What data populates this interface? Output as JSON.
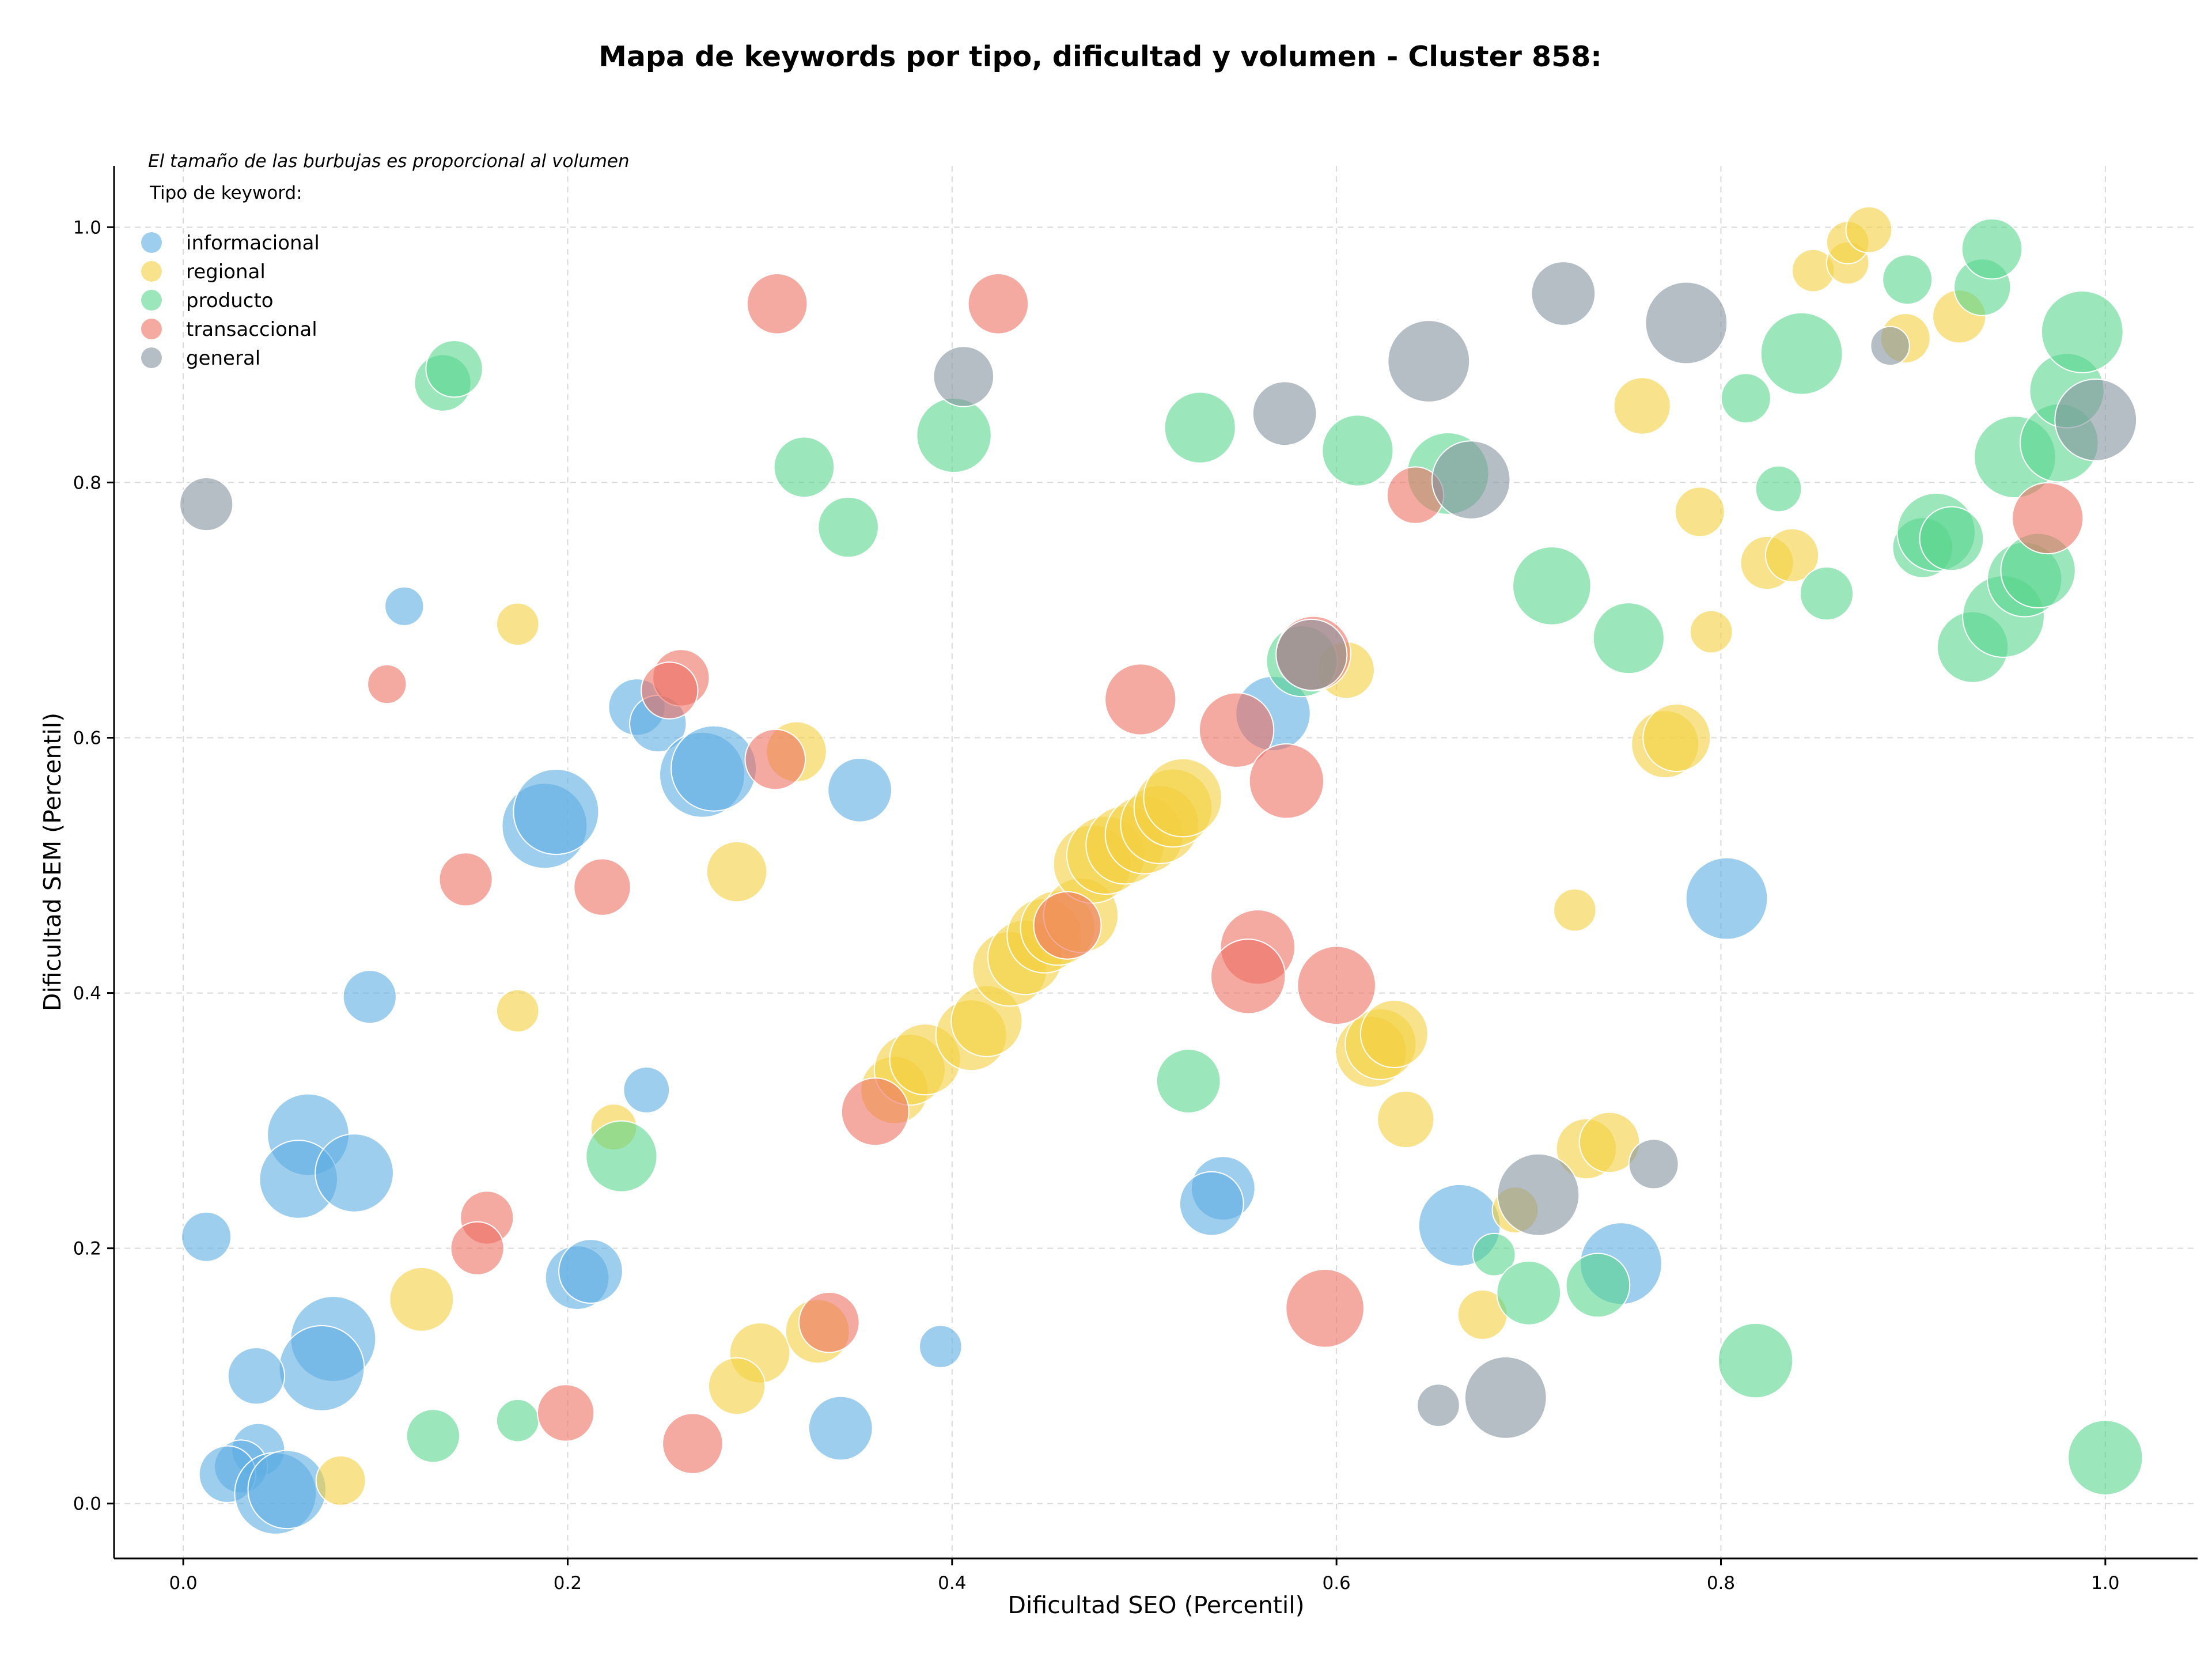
{
  "chart_data": {
    "type": "scatter",
    "title": "Mapa de keywords por tipo, dificultad y volumen - Cluster 858:",
    "xlabel": "Dificultad SEO (Percentil)",
    "ylabel": "Dificultad SEM (Percentil)",
    "xlim": [
      -0.036,
      1.048
    ],
    "ylim": [
      -0.043,
      1.048
    ],
    "xticks": [
      0.0,
      0.2,
      0.4,
      0.6,
      0.8,
      1.0
    ],
    "yticks": [
      0.0,
      0.2,
      0.4,
      0.6,
      0.8,
      1.0
    ],
    "xtick_labels": [
      "0.0",
      "0.2",
      "0.4",
      "0.6",
      "0.8",
      "1.0"
    ],
    "ytick_labels": [
      "0.0",
      "0.2",
      "0.4",
      "0.6",
      "0.8",
      "1.0"
    ],
    "grid": true,
    "note": "El tamaño de las burbujas es proporcional al volumen",
    "legend": {
      "title": "Tipo de keyword:",
      "position": "top-left",
      "entries": [
        "informacional",
        "regional",
        "producto",
        "transaccional",
        "general"
      ]
    },
    "series": [
      {
        "name": "informacional",
        "color": "#5DADE2",
        "points": [
          [
            0.115,
            0.703,
            0.35
          ],
          [
            0.097,
            0.397,
            0.55
          ],
          [
            0.012,
            0.209,
            0.5
          ],
          [
            0.065,
            0.289,
            0.95
          ],
          [
            0.06,
            0.254,
            0.9
          ],
          [
            0.089,
            0.259,
            0.9
          ],
          [
            0.078,
            0.129,
            1.0
          ],
          [
            0.072,
            0.106,
            1.0
          ],
          [
            0.038,
            0.1,
            0.6
          ],
          [
            0.039,
            0.042,
            0.55
          ],
          [
            0.03,
            0.029,
            0.55
          ],
          [
            0.023,
            0.023,
            0.6
          ],
          [
            0.048,
            0.008,
            0.95
          ],
          [
            0.054,
            0.011,
            0.9
          ],
          [
            0.188,
            0.531,
            1.0
          ],
          [
            0.194,
            0.542,
            1.0
          ],
          [
            0.236,
            0.624,
            0.6
          ],
          [
            0.247,
            0.611,
            0.6
          ],
          [
            0.27,
            0.571,
            1.0
          ],
          [
            0.276,
            0.576,
            1.0
          ],
          [
            0.352,
            0.559,
            0.7
          ],
          [
            0.241,
            0.324,
            0.45
          ],
          [
            0.205,
            0.177,
            0.7
          ],
          [
            0.212,
            0.182,
            0.7
          ],
          [
            0.394,
            0.123,
            0.4
          ],
          [
            0.342,
            0.059,
            0.7
          ],
          [
            0.567,
            0.619,
            0.85
          ],
          [
            0.541,
            0.247,
            0.7
          ],
          [
            0.535,
            0.235,
            0.7
          ],
          [
            0.664,
            0.218,
            0.95
          ],
          [
            0.748,
            0.188,
            0.95
          ],
          [
            0.803,
            0.474,
            0.95
          ]
        ]
      },
      {
        "name": "regional",
        "color": "#F4D03F",
        "points": [
          [
            0.174,
            0.689,
            0.4
          ],
          [
            0.174,
            0.386,
            0.4
          ],
          [
            0.319,
            0.589,
            0.65
          ],
          [
            0.288,
            0.495,
            0.65
          ],
          [
            0.224,
            0.295,
            0.45
          ],
          [
            0.124,
            0.16,
            0.7
          ],
          [
            0.082,
            0.018,
            0.5
          ],
          [
            0.3,
            0.118,
            0.65
          ],
          [
            0.288,
            0.092,
            0.6
          ],
          [
            0.33,
            0.135,
            0.7
          ],
          [
            0.37,
            0.324,
            0.75
          ],
          [
            0.378,
            0.34,
            0.8
          ],
          [
            0.386,
            0.348,
            0.8
          ],
          [
            0.41,
            0.367,
            0.8
          ],
          [
            0.418,
            0.378,
            0.8
          ],
          [
            0.43,
            0.419,
            0.85
          ],
          [
            0.438,
            0.428,
            0.85
          ],
          [
            0.448,
            0.445,
            0.85
          ],
          [
            0.455,
            0.451,
            0.85
          ],
          [
            0.467,
            0.461,
            0.85
          ],
          [
            0.473,
            0.501,
            0.9
          ],
          [
            0.48,
            0.508,
            0.9
          ],
          [
            0.49,
            0.516,
            0.9
          ],
          [
            0.5,
            0.524,
            0.9
          ],
          [
            0.508,
            0.532,
            0.9
          ],
          [
            0.515,
            0.545,
            0.9
          ],
          [
            0.52,
            0.553,
            0.9
          ],
          [
            0.605,
            0.653,
            0.6
          ],
          [
            0.618,
            0.354,
            0.8
          ],
          [
            0.623,
            0.36,
            0.8
          ],
          [
            0.63,
            0.368,
            0.75
          ],
          [
            0.636,
            0.301,
            0.6
          ],
          [
            0.73,
            0.278,
            0.65
          ],
          [
            0.742,
            0.283,
            0.65
          ],
          [
            0.693,
            0.23,
            0.45
          ],
          [
            0.676,
            0.148,
            0.5
          ],
          [
            0.724,
            0.465,
            0.4
          ],
          [
            0.759,
            0.86,
            0.6
          ],
          [
            0.771,
            0.595,
            0.75
          ],
          [
            0.777,
            0.6,
            0.75
          ],
          [
            0.789,
            0.777,
            0.5
          ],
          [
            0.795,
            0.683,
            0.4
          ],
          [
            0.824,
            0.737,
            0.55
          ],
          [
            0.837,
            0.743,
            0.55
          ],
          [
            0.848,
            0.966,
            0.4
          ],
          [
            0.866,
            0.972,
            0.4
          ],
          [
            0.866,
            0.988,
            0.4
          ],
          [
            0.877,
            0.998,
            0.45
          ],
          [
            0.896,
            0.913,
            0.5
          ],
          [
            0.924,
            0.93,
            0.55
          ]
        ]
      },
      {
        "name": "producto",
        "color": "#58D68D",
        "points": [
          [
            0.135,
            0.878,
            0.6
          ],
          [
            0.141,
            0.889,
            0.6
          ],
          [
            0.323,
            0.812,
            0.65
          ],
          [
            0.346,
            0.765,
            0.65
          ],
          [
            0.401,
            0.837,
            0.85
          ],
          [
            0.529,
            0.843,
            0.8
          ],
          [
            0.611,
            0.825,
            0.8
          ],
          [
            0.582,
            0.66,
            0.8
          ],
          [
            0.658,
            0.807,
            0.95
          ],
          [
            0.712,
            0.719,
            0.9
          ],
          [
            0.752,
            0.678,
            0.8
          ],
          [
            0.228,
            0.272,
            0.8
          ],
          [
            0.13,
            0.053,
            0.55
          ],
          [
            0.174,
            0.065,
            0.4
          ],
          [
            0.523,
            0.331,
            0.7
          ],
          [
            0.682,
            0.195,
            0.4
          ],
          [
            0.7,
            0.165,
            0.7
          ],
          [
            0.736,
            0.171,
            0.7
          ],
          [
            0.818,
            0.112,
            0.85
          ],
          [
            0.813,
            0.866,
            0.5
          ],
          [
            0.83,
            0.795,
            0.45
          ],
          [
            0.842,
            0.901,
            0.95
          ],
          [
            0.855,
            0.713,
            0.55
          ],
          [
            0.897,
            0.959,
            0.5
          ],
          [
            0.905,
            0.749,
            0.65
          ],
          [
            0.912,
            0.761,
            0.9
          ],
          [
            0.92,
            0.756,
            0.7
          ],
          [
            0.931,
            0.671,
            0.8
          ],
          [
            0.936,
            0.953,
            0.6
          ],
          [
            0.941,
            0.983,
            0.65
          ],
          [
            0.947,
            0.695,
            0.95
          ],
          [
            0.953,
            0.82,
            0.95
          ],
          [
            0.958,
            0.724,
            0.85
          ],
          [
            0.965,
            0.731,
            0.85
          ],
          [
            0.976,
            0.831,
            0.9
          ],
          [
            0.98,
            0.872,
            0.85
          ],
          [
            0.988,
            0.918,
            0.95
          ],
          [
            1.0,
            0.036,
            0.85
          ]
        ]
      },
      {
        "name": "transaccional",
        "color": "#EC7063",
        "points": [
          [
            0.309,
            0.94,
            0.65
          ],
          [
            0.424,
            0.94,
            0.65
          ],
          [
            0.106,
            0.642,
            0.35
          ],
          [
            0.259,
            0.647,
            0.6
          ],
          [
            0.253,
            0.637,
            0.6
          ],
          [
            0.308,
            0.583,
            0.65
          ],
          [
            0.147,
            0.489,
            0.55
          ],
          [
            0.218,
            0.483,
            0.6
          ],
          [
            0.158,
            0.224,
            0.55
          ],
          [
            0.153,
            0.2,
            0.55
          ],
          [
            0.199,
            0.071,
            0.6
          ],
          [
            0.265,
            0.047,
            0.65
          ],
          [
            0.336,
            0.142,
            0.65
          ],
          [
            0.36,
            0.307,
            0.75
          ],
          [
            0.46,
            0.453,
            0.75
          ],
          [
            0.498,
            0.63,
            0.8
          ],
          [
            0.548,
            0.606,
            0.85
          ],
          [
            0.574,
            0.566,
            0.85
          ],
          [
            0.588,
            0.666,
            0.85
          ],
          [
            0.559,
            0.436,
            0.85
          ],
          [
            0.554,
            0.413,
            0.85
          ],
          [
            0.6,
            0.406,
            0.9
          ],
          [
            0.594,
            0.153,
            0.9
          ],
          [
            0.641,
            0.79,
            0.6
          ],
          [
            0.97,
            0.772,
            0.8
          ]
        ]
      },
      {
        "name": "general",
        "color": "#85929E",
        "points": [
          [
            0.012,
            0.783,
            0.55
          ],
          [
            0.406,
            0.883,
            0.65
          ],
          [
            0.573,
            0.854,
            0.7
          ],
          [
            0.648,
            0.895,
            0.95
          ],
          [
            0.67,
            0.802,
            0.9
          ],
          [
            0.718,
            0.948,
            0.7
          ],
          [
            0.782,
            0.925,
            0.95
          ],
          [
            0.888,
            0.907,
            0.35
          ],
          [
            0.995,
            0.849,
            0.95
          ],
          [
            0.587,
            0.665,
            0.8
          ],
          [
            0.705,
            0.242,
            0.95
          ],
          [
            0.765,
            0.266,
            0.5
          ],
          [
            0.653,
            0.077,
            0.4
          ],
          [
            0.688,
            0.083,
            0.95
          ]
        ]
      }
    ]
  }
}
